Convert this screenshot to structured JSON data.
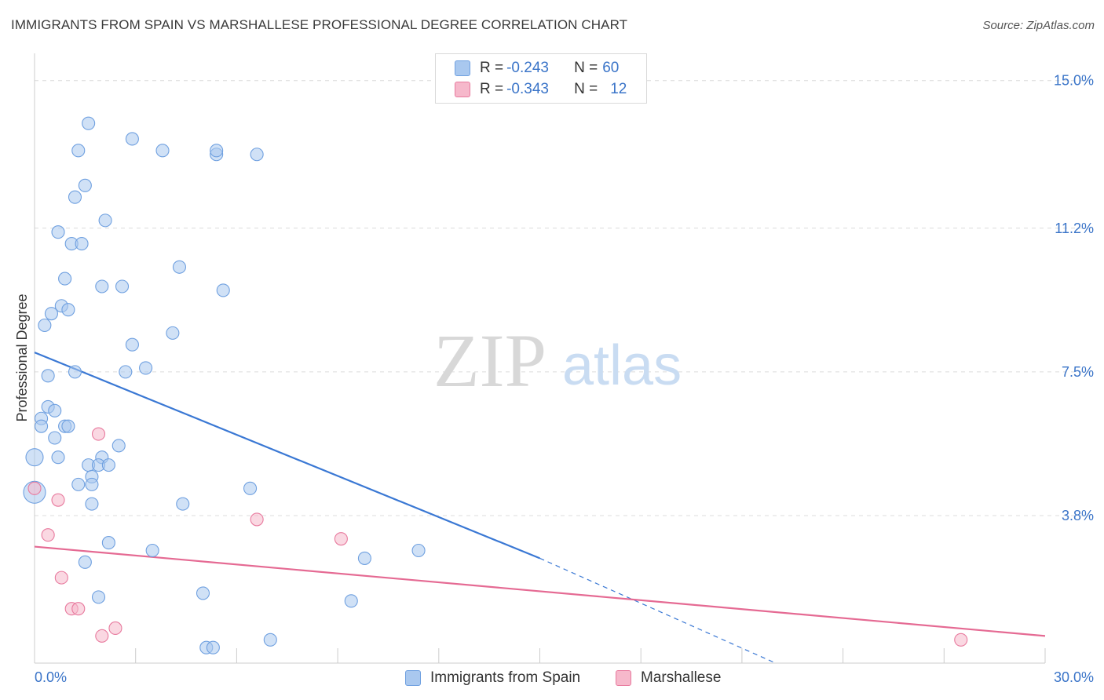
{
  "header": {
    "title": "IMMIGRANTS FROM SPAIN VS MARSHALLESE PROFESSIONAL DEGREE CORRELATION CHART",
    "source": "Source: ZipAtlas.com"
  },
  "watermark": {
    "zip": "ZIP",
    "atlas": "atlas"
  },
  "legend": {
    "rows": [
      {
        "r_label": "R = ",
        "r_value": "-0.243",
        "n_label": "N = ",
        "n_value": "60",
        "color": "#a9c8ef"
      },
      {
        "r_label": "R = ",
        "r_value": "-0.343",
        "n_label": "N = ",
        "n_value": "12",
        "color": "#f6b8cb"
      }
    ]
  },
  "bottom_legend": {
    "items": [
      {
        "label": "Immigrants from Spain",
        "color": "#a9c8ef"
      },
      {
        "label": "Marshallese",
        "color": "#f6b8cb"
      }
    ]
  },
  "chart_data": {
    "type": "scatter",
    "title": "IMMIGRANTS FROM SPAIN VS MARSHALLESE PROFESSIONAL DEGREE CORRELATION CHART",
    "xlabel": "",
    "ylabel": "Professional Degree",
    "xlim": [
      0,
      30
    ],
    "ylim": [
      0,
      15.5
    ],
    "x_tick_labels": [
      "0.0%",
      "30.0%"
    ],
    "y_ticks": [
      3.8,
      7.5,
      11.2,
      15.0
    ],
    "y_tick_labels": [
      "3.8%",
      "7.5%",
      "11.2%",
      "15.0%"
    ],
    "grid": true,
    "legend_position": "top-center",
    "series": [
      {
        "name": "Immigrants from Spain",
        "color": "#6fa0e0",
        "fill": "#a9c8ef",
        "points": [
          [
            1.6,
            13.9
          ],
          [
            1.3,
            13.2
          ],
          [
            2.9,
            13.5
          ],
          [
            3.8,
            13.2
          ],
          [
            5.4,
            13.1
          ],
          [
            5.4,
            13.2
          ],
          [
            6.6,
            13.1
          ],
          [
            1.5,
            12.3
          ],
          [
            1.2,
            12.0
          ],
          [
            2.1,
            11.4
          ],
          [
            0.7,
            11.1
          ],
          [
            1.1,
            10.8
          ],
          [
            1.4,
            10.8
          ],
          [
            4.3,
            10.2
          ],
          [
            0.9,
            9.9
          ],
          [
            2.0,
            9.7
          ],
          [
            2.6,
            9.7
          ],
          [
            5.6,
            9.6
          ],
          [
            0.8,
            9.2
          ],
          [
            1.0,
            9.1
          ],
          [
            0.5,
            9.0
          ],
          [
            0.3,
            8.7
          ],
          [
            4.1,
            8.5
          ],
          [
            2.9,
            8.2
          ],
          [
            1.2,
            7.5
          ],
          [
            2.7,
            7.5
          ],
          [
            3.3,
            7.6
          ],
          [
            0.4,
            7.4
          ],
          [
            0.4,
            6.6
          ],
          [
            0.6,
            6.5
          ],
          [
            0.2,
            6.3
          ],
          [
            0.2,
            6.1
          ],
          [
            0.9,
            6.1
          ],
          [
            1.0,
            6.1
          ],
          [
            0.6,
            5.8
          ],
          [
            2.5,
            5.6
          ],
          [
            0.0,
            5.3
          ],
          [
            0.7,
            5.3
          ],
          [
            2.0,
            5.3
          ],
          [
            1.6,
            5.1
          ],
          [
            1.9,
            5.1
          ],
          [
            2.2,
            5.1
          ],
          [
            1.7,
            4.8
          ],
          [
            1.3,
            4.6
          ],
          [
            1.7,
            4.6
          ],
          [
            6.4,
            4.5
          ],
          [
            0.0,
            4.4
          ],
          [
            1.7,
            4.1
          ],
          [
            4.4,
            4.1
          ],
          [
            2.2,
            3.1
          ],
          [
            3.5,
            2.9
          ],
          [
            11.4,
            2.9
          ],
          [
            9.8,
            2.7
          ],
          [
            1.5,
            2.6
          ],
          [
            1.9,
            1.7
          ],
          [
            5.0,
            1.8
          ],
          [
            9.4,
            1.6
          ],
          [
            7.0,
            0.6
          ],
          [
            5.1,
            0.4
          ],
          [
            5.3,
            0.4
          ]
        ],
        "trend": {
          "x": [
            0,
            15
          ],
          "y": [
            8.0,
            2.7
          ],
          "dashed_to": [
            22,
            0
          ]
        }
      },
      {
        "name": "Marshallese",
        "color": "#e87a9e",
        "fill": "#f6b8cb",
        "points": [
          [
            0.0,
            4.5
          ],
          [
            1.9,
            5.9
          ],
          [
            0.7,
            4.2
          ],
          [
            0.4,
            3.3
          ],
          [
            6.6,
            3.7
          ],
          [
            9.1,
            3.2
          ],
          [
            0.8,
            2.2
          ],
          [
            1.1,
            1.4
          ],
          [
            1.3,
            1.4
          ],
          [
            2.4,
            0.9
          ],
          [
            2.0,
            0.7
          ],
          [
            27.5,
            0.6
          ]
        ],
        "trend": {
          "x": [
            0,
            30
          ],
          "y": [
            3.0,
            0.7
          ]
        }
      }
    ]
  }
}
